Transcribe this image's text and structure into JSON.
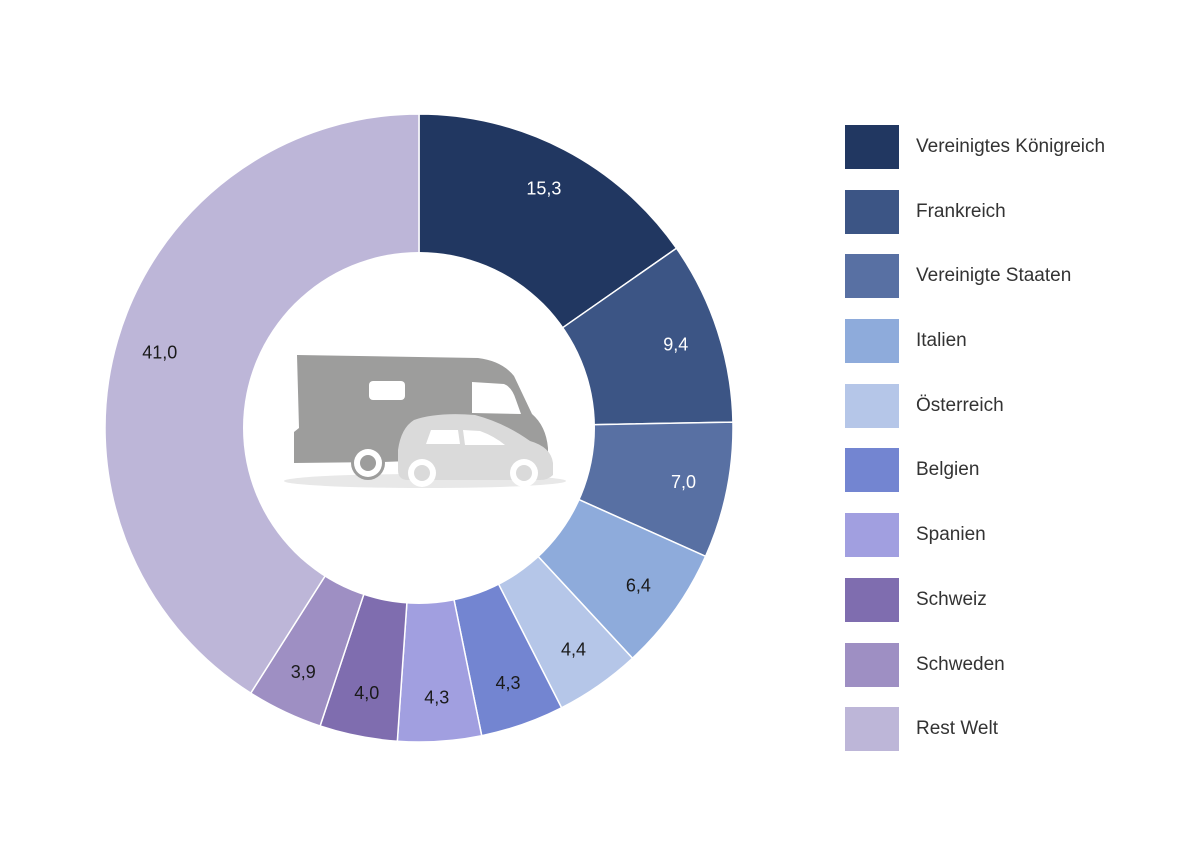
{
  "chart_data": {
    "type": "pie",
    "style": "donut",
    "center_icon": "motorhome-and-car-icon",
    "legend_position": "right",
    "title": "",
    "categories": [
      "Vereinigtes Königreich",
      "Frankreich",
      "Vereinigte Staaten",
      "Italien",
      "Österreich",
      "Belgien",
      "Spanien",
      "Schweiz",
      "Schweden",
      "Rest Welt"
    ],
    "values": [
      15.3,
      9.4,
      7.0,
      6.4,
      4.4,
      4.3,
      4.3,
      4.0,
      3.9,
      41.0
    ],
    "value_labels": [
      "15,3",
      "9,4",
      "7,0",
      "6,4",
      "4,4",
      "4,3",
      "4,3",
      "4,0",
      "3,9",
      "41,0"
    ],
    "colors": [
      "#213761",
      "#3c5585",
      "#5870a3",
      "#8eabdb",
      "#b5c6e8",
      "#7385d1",
      "#a19fe0",
      "#7f6daf",
      "#9e8fc3",
      "#bdb6d8"
    ],
    "label_colors": [
      "#ffffff",
      "#ffffff",
      "#ffffff",
      "#1a1a1a",
      "#1a1a1a",
      "#1a1a1a",
      "#1a1a1a",
      "#1a1a1a",
      "#1a1a1a",
      "#1a1a1a"
    ]
  }
}
